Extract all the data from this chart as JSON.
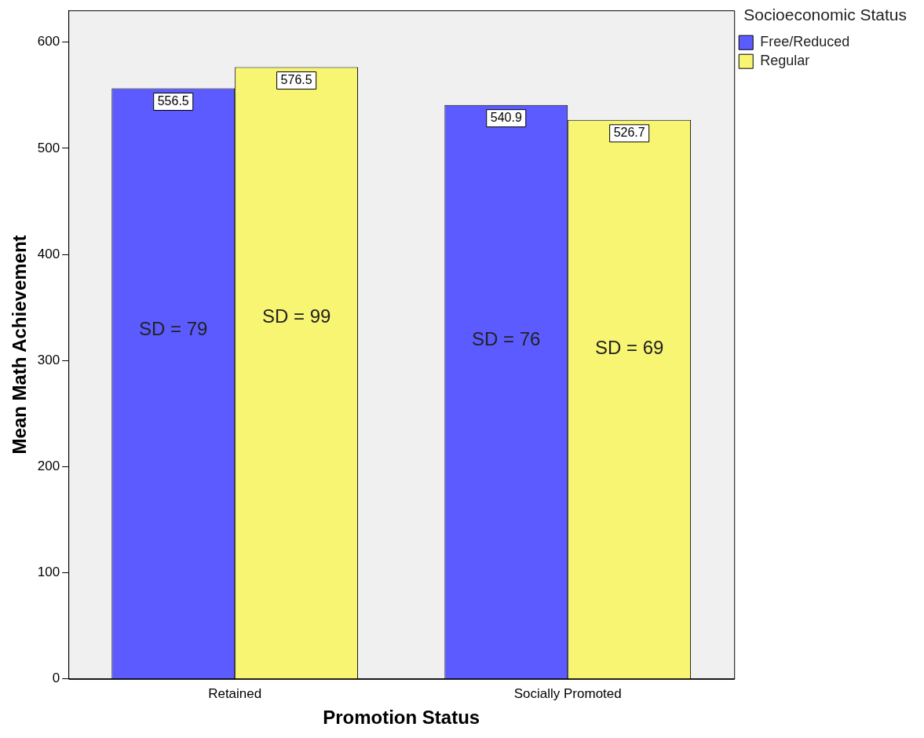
{
  "chart_data": {
    "type": "bar",
    "xlabel": "Promotion Status",
    "ylabel": "Mean Math Achievement",
    "legend_title": "Socioeconomic Status",
    "categories": [
      "Retained",
      "Socially Promoted"
    ],
    "series": [
      {
        "name": "Free/Reduced",
        "color": "#5b5bff",
        "values": [
          556.5,
          540.9
        ]
      },
      {
        "name": "Regular",
        "color": "#f8f573",
        "values": [
          576.5,
          526.7
        ]
      }
    ],
    "ylim": [
      0,
      630
    ],
    "yticks": [
      0,
      100,
      200,
      300,
      400,
      500,
      600
    ],
    "grid": false,
    "legend": "top right",
    "data_labels": true,
    "annotations": [
      "SD = 79",
      "SD = 99",
      "SD = 76",
      "SD = 69"
    ]
  }
}
